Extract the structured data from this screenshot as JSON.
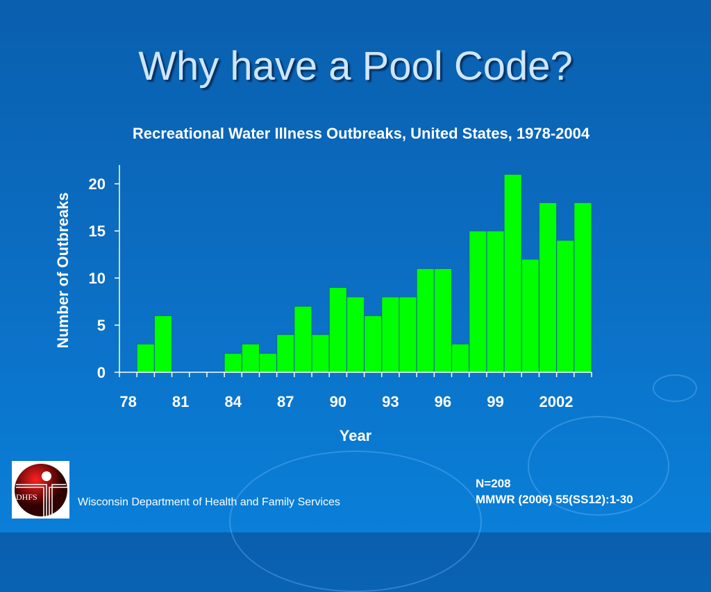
{
  "slide": {
    "title": "Why have a Pool Code?",
    "note_n": "N=208",
    "note_source": "MMWR (2006) 55(SS12):1-30",
    "organization": "Wisconsin Department of Health and Family Services",
    "logo_text": "DHFS"
  },
  "chart_data": {
    "type": "bar",
    "title": "Recreational Water Illness Outbreaks, United States, 1978-2004",
    "xlabel": "Year",
    "ylabel": "Number of Outbreaks",
    "categories": [
      1978,
      1979,
      1980,
      1981,
      1982,
      1983,
      1984,
      1985,
      1986,
      1987,
      1988,
      1989,
      1990,
      1991,
      1992,
      1993,
      1994,
      1995,
      1996,
      1997,
      1998,
      1999,
      2000,
      2001,
      2002,
      2003,
      2004
    ],
    "values": [
      0,
      3,
      6,
      0,
      0,
      0,
      2,
      3,
      2,
      4,
      7,
      4,
      9,
      8,
      6,
      8,
      8,
      11,
      11,
      3,
      15,
      15,
      21,
      12,
      18,
      14,
      18
    ],
    "ylim": [
      0,
      22
    ],
    "yticks": [
      "0",
      "5",
      "10",
      "15",
      "20"
    ],
    "xtick_labels": [
      {
        "year": 1978,
        "label": "78"
      },
      {
        "year": 1981,
        "label": "81"
      },
      {
        "year": 1984,
        "label": "84"
      },
      {
        "year": 1987,
        "label": "87"
      },
      {
        "year": 1990,
        "label": "90"
      },
      {
        "year": 1993,
        "label": "93"
      },
      {
        "year": 1996,
        "label": "96"
      },
      {
        "year": 1999,
        "label": "99"
      },
      {
        "year": 2002,
        "label": "2002"
      }
    ],
    "bar_color": "#00ff00",
    "grid": false
  }
}
